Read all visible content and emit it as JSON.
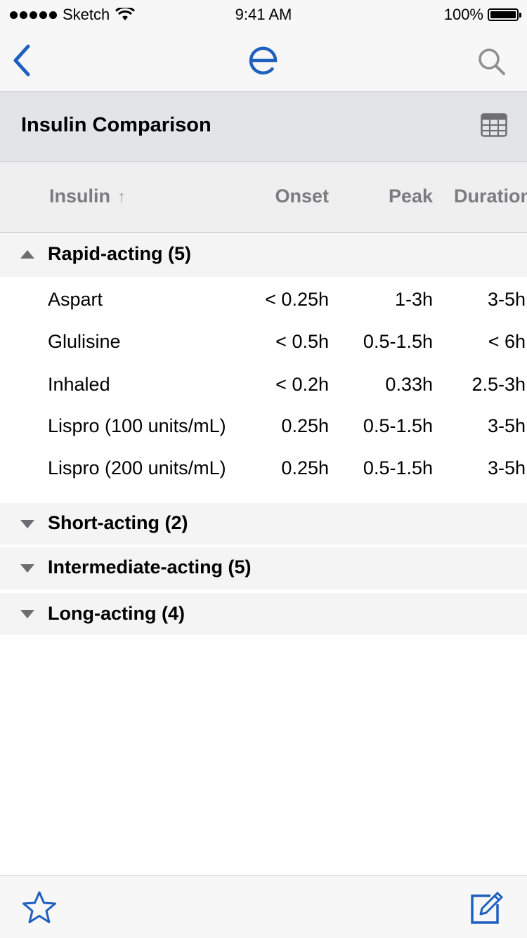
{
  "status_bar": {
    "carrier": "Sketch",
    "time": "9:41 AM",
    "battery": "100%"
  },
  "nav": {
    "logo": "e",
    "back_icon": "chevron-left-icon",
    "search_icon": "search-icon"
  },
  "title_bar": {
    "title": "Insulin Comparison",
    "icon": "table-icon"
  },
  "columns": {
    "insulin": "Insulin",
    "sort_arrow": "↑",
    "onset": "Onset",
    "peak": "Peak",
    "duration": "Duration"
  },
  "groups": [
    {
      "label": "Rapid-acting (5)",
      "expanded": true,
      "rows": [
        {
          "name": "Aspart",
          "onset": "< 0.25h",
          "peak": "1-3h",
          "duration": "3-5h"
        },
        {
          "name": "Glulisine",
          "onset": "< 0.5h",
          "peak": "0.5-1.5h",
          "duration": "< 6h"
        },
        {
          "name": "Inhaled",
          "onset": "< 0.2h",
          "peak": "0.33h",
          "duration": "2.5-3h"
        },
        {
          "name": "Lispro (100 units/mL)",
          "onset": "0.25h",
          "peak": "0.5-1.5h",
          "duration": "3-5h"
        },
        {
          "name": "Lispro (200 units/mL)",
          "onset": "0.25h",
          "peak": "0.5-1.5h",
          "duration": "3-5h"
        }
      ]
    },
    {
      "label": "Short-acting (2)",
      "expanded": false
    },
    {
      "label": "Intermediate-acting (5)",
      "expanded": false
    },
    {
      "label": "Long-acting (4)",
      "expanded": false
    }
  ],
  "toolbar": {
    "favorite_icon": "star-icon",
    "edit_icon": "edit-icon"
  },
  "colors": {
    "accent": "#1f5fbf",
    "caret": "#6d6d72"
  }
}
